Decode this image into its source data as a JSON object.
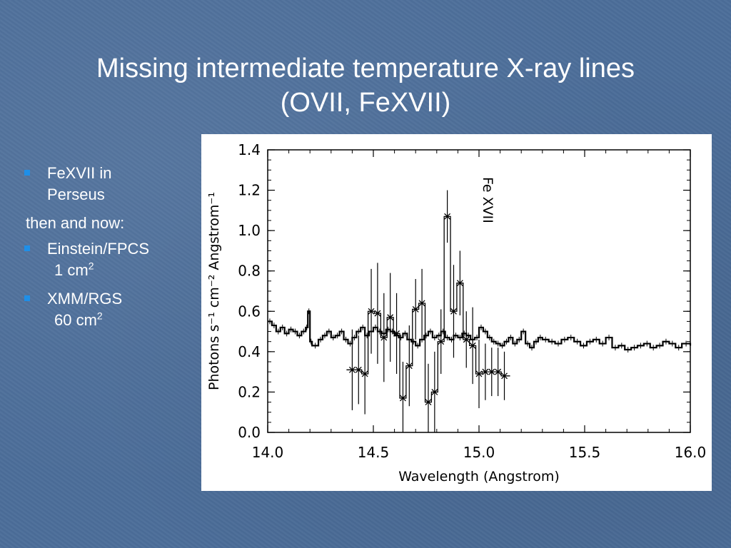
{
  "slide": {
    "title_line1": "Missing intermediate temperature X-ray lines",
    "title_line2": "(OVII, FeXVII)",
    "bullets": [
      {
        "line1": "FeXVII in",
        "line2": "Perseus"
      },
      {
        "text": "then and now:"
      },
      {
        "line1": "Einstein/FPCS",
        "line2": "1 cm",
        "sup": "2"
      },
      {
        "line1": "XMM/RGS",
        "line2": "60 cm",
        "sup": "2"
      }
    ]
  },
  "chart_data": {
    "type": "line",
    "title": "",
    "xlabel": "Wavelength (Angstrom)",
    "ylabel": "Photons s⁻¹ cm⁻² Angstrom⁻¹",
    "xlim": [
      14.0,
      16.0
    ],
    "ylim": [
      0.0,
      1.4
    ],
    "x_ticks": [
      "14.0",
      "14.5",
      "15.0",
      "15.5",
      "16.0"
    ],
    "y_ticks": [
      "0.0",
      "0.2",
      "0.4",
      "0.6",
      "0.8",
      "1.0",
      "1.2",
      "1.4"
    ],
    "annotation": "Fe XVII",
    "annotation_x": 15.02,
    "series": [
      {
        "style": "step",
        "x": [
          14.0,
          14.02,
          14.04,
          14.06,
          14.08,
          14.1,
          14.12,
          14.14,
          14.16,
          14.18,
          14.19,
          14.2,
          14.21,
          14.24,
          14.26,
          14.28,
          14.3,
          14.32,
          14.34,
          14.36,
          14.38,
          14.4,
          14.42,
          14.44,
          14.46,
          14.48,
          14.5,
          14.52,
          14.54,
          14.56,
          14.58,
          14.6,
          14.62,
          14.64,
          14.66,
          14.68,
          14.7,
          14.72,
          14.74,
          14.76,
          14.78,
          14.8,
          14.82,
          14.84,
          14.86,
          14.88,
          14.9,
          14.92,
          14.94,
          14.96,
          14.98,
          15.0,
          15.02,
          15.04,
          15.06,
          15.08,
          15.1,
          15.12,
          15.14,
          15.16,
          15.18,
          15.2,
          15.22,
          15.24,
          15.26,
          15.28,
          15.3,
          15.33,
          15.36,
          15.39,
          15.42,
          15.45,
          15.48,
          15.51,
          15.54,
          15.57,
          15.6,
          15.63,
          15.66,
          15.69,
          15.72,
          15.75,
          15.78,
          15.81,
          15.84,
          15.87,
          15.9,
          15.93,
          15.96,
          16.0
        ],
        "y": [
          0.55,
          0.53,
          0.5,
          0.52,
          0.49,
          0.51,
          0.5,
          0.48,
          0.5,
          0.52,
          0.6,
          0.45,
          0.43,
          0.46,
          0.48,
          0.5,
          0.47,
          0.48,
          0.5,
          0.46,
          0.44,
          0.47,
          0.5,
          0.52,
          0.48,
          0.5,
          0.52,
          0.5,
          0.49,
          0.51,
          0.5,
          0.48,
          0.47,
          0.49,
          0.46,
          0.45,
          0.43,
          0.46,
          0.48,
          0.5,
          0.47,
          0.48,
          0.5,
          0.47,
          0.46,
          0.48,
          0.47,
          0.49,
          0.48,
          0.46,
          0.47,
          0.52,
          0.5,
          0.47,
          0.45,
          0.44,
          0.43,
          0.45,
          0.47,
          0.44,
          0.46,
          0.5,
          0.44,
          0.42,
          0.45,
          0.47,
          0.46,
          0.45,
          0.44,
          0.46,
          0.47,
          0.45,
          0.43,
          0.45,
          0.46,
          0.44,
          0.47,
          0.42,
          0.43,
          0.41,
          0.42,
          0.43,
          0.44,
          0.42,
          0.43,
          0.45,
          0.44,
          0.42,
          0.44,
          0.43
        ]
      },
      {
        "style": "errorbar",
        "x": [
          14.4,
          14.43,
          14.46,
          14.49,
          14.52,
          14.55,
          14.58,
          14.61,
          14.64,
          14.67,
          14.7,
          14.73,
          14.76,
          14.79,
          14.82,
          14.85,
          14.88,
          14.91,
          14.94,
          14.97,
          15.0,
          15.03,
          15.06,
          15.09,
          15.12
        ],
        "y": [
          0.31,
          0.31,
          0.29,
          0.6,
          0.59,
          0.47,
          0.57,
          0.49,
          0.17,
          0.33,
          0.61,
          0.64,
          0.15,
          0.2,
          0.45,
          1.07,
          0.6,
          0.74,
          0.46,
          0.43,
          0.29,
          0.3,
          0.3,
          0.3,
          0.28
        ],
        "err": [
          0.2,
          0.17,
          0.2,
          0.21,
          0.25,
          0.22,
          0.22,
          0.2,
          0.18,
          0.2,
          0.15,
          0.17,
          0.19,
          0.2,
          0.16,
          0.13,
          0.23,
          0.16,
          0.14,
          0.19,
          0.17,
          0.14,
          0.12,
          0.12,
          0.12
        ]
      }
    ]
  }
}
